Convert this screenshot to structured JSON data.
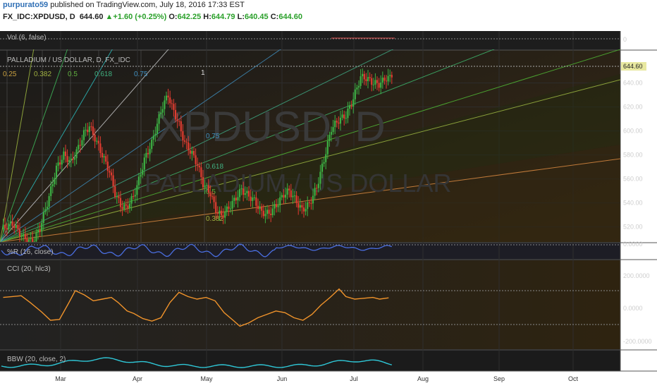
{
  "header": {
    "author": "purpurato59",
    "published": "published on TradingView.com, July 18, 2016 17:33 EST",
    "symbol": "FX_IDC:XPDUSD, D",
    "last": "644.60",
    "change_arrow": "▲",
    "change": "+1.60 (+0.25%)",
    "o_label": "O:",
    "open": "642.25",
    "h_label": "H:",
    "high": "644.79",
    "l_label": "L:",
    "low": "640.45",
    "c_label": "C:",
    "close": "644.60"
  },
  "colors": {
    "background": "#ffffff",
    "panel": "#1a1a1a",
    "up_candle": "#3cb043",
    "down_candle": "#e03c31",
    "pctr_line": "#4a6ee0",
    "cci_line": "#f0932b",
    "bbw_line": "#2fc8d8",
    "grid": "#2e2e2e",
    "price_label": "#e8e8a0"
  },
  "panes": {
    "vol_label": "Vol (6, false)",
    "vol_tick": "0",
    "price_title": "PALLADIUM / US DOLLAR, D, FX_IDC",
    "watermark_symbol": "XPDUSD, D",
    "watermark_name": "PALLADIUM / US DOLLAR",
    "current_price": "644.60",
    "pctr_label": "%R (16, close)",
    "pctr_tick": "0.0000",
    "cci_label": "CCI (20, hlc3)",
    "cci_ticks": [
      "200.0000",
      "0.0000",
      "-200.0000"
    ],
    "bbw_label": "BBW (20, close, 2)"
  },
  "fib": {
    "top_labels": [
      "0.25",
      "0.382",
      "0.5",
      "0.618",
      "0.75",
      "1"
    ],
    "mid_labels": [
      "0.75",
      "0.618",
      "0.5",
      "0.382"
    ]
  },
  "chart_data": {
    "type": "candlestick",
    "title": "PALLADIUM / US DOLLAR, D, FX_IDC",
    "x_axis_labels": [
      "Mar",
      "Apr",
      "May",
      "Jun",
      "Jul",
      "Aug",
      "Sep",
      "Oct"
    ],
    "y_axis_ticks": [
      520,
      540,
      560,
      580,
      600,
      620,
      640
    ],
    "ylim": [
      508,
      668
    ],
    "last_close": 644.6,
    "series": [
      {
        "name": "PALLADIUM / US DOLLAR",
        "close_path": [
          [
            0,
            518
          ],
          [
            6,
            523
          ],
          [
            12,
            511
          ],
          [
            17,
            507
          ],
          [
            21,
            519
          ],
          [
            26,
            545
          ],
          [
            30,
            569
          ],
          [
            34,
            580
          ],
          [
            38,
            574
          ],
          [
            42,
            586
          ],
          [
            45,
            598
          ],
          [
            48,
            604
          ],
          [
            51,
            594
          ],
          [
            55,
            580
          ],
          [
            59,
            566
          ],
          [
            62,
            548
          ],
          [
            65,
            538
          ],
          [
            68,
            536
          ],
          [
            72,
            545
          ],
          [
            75,
            559
          ],
          [
            78,
            576
          ],
          [
            82,
            590
          ],
          [
            85,
            606
          ],
          [
            88,
            621
          ],
          [
            91,
            630
          ],
          [
            93,
            620
          ],
          [
            97,
            605
          ],
          [
            100,
            590
          ],
          [
            104,
            581
          ],
          [
            107,
            572
          ],
          [
            110,
            556
          ],
          [
            114,
            548
          ],
          [
            117,
            534
          ],
          [
            120,
            529
          ],
          [
            123,
            534
          ],
          [
            127,
            542
          ],
          [
            131,
            551
          ],
          [
            134,
            547
          ],
          [
            138,
            542
          ],
          [
            142,
            532
          ],
          [
            146,
            531
          ],
          [
            150,
            538
          ],
          [
            154,
            547
          ],
          [
            157,
            550
          ],
          [
            161,
            541
          ],
          [
            164,
            534
          ],
          [
            168,
            539
          ],
          [
            172,
            553
          ],
          [
            176,
            576
          ],
          [
            180,
            602
          ],
          [
            184,
            609
          ],
          [
            188,
            613
          ],
          [
            191,
            623
          ],
          [
            194,
            636
          ],
          [
            196,
            645
          ],
          [
            199,
            644
          ],
          [
            201,
            642
          ],
          [
            203,
            640
          ],
          [
            206,
            639
          ],
          [
            210,
            644
          ],
          [
            213,
            644.6
          ]
        ]
      }
    ],
    "panes_bottom": {
      "williams_r_level_ticks": [
        0
      ],
      "cci_level_ticks": [
        200,
        0,
        -200
      ],
      "cci_approx_path": [
        [
          0,
          120
        ],
        [
          4,
          130
        ],
        [
          8,
          140
        ],
        [
          12,
          60
        ],
        [
          17,
          -50
        ],
        [
          21,
          -150
        ],
        [
          25,
          -140
        ],
        [
          29,
          50
        ],
        [
          32,
          200
        ],
        [
          36,
          150
        ],
        [
          40,
          80
        ],
        [
          44,
          100
        ],
        [
          48,
          120
        ],
        [
          51,
          60
        ],
        [
          55,
          -40
        ],
        [
          58,
          -70
        ],
        [
          62,
          -130
        ],
        [
          66,
          -160
        ],
        [
          70,
          -120
        ],
        [
          74,
          60
        ],
        [
          78,
          180
        ],
        [
          82,
          130
        ],
        [
          86,
          100
        ],
        [
          90,
          120
        ],
        [
          94,
          80
        ],
        [
          98,
          -60
        ],
        [
          102,
          -150
        ],
        [
          105,
          -220
        ],
        [
          109,
          -180
        ],
        [
          113,
          -120
        ],
        [
          117,
          -80
        ],
        [
          121,
          -40
        ],
        [
          125,
          -60
        ],
        [
          129,
          -120
        ],
        [
          133,
          -150
        ],
        [
          137,
          -80
        ],
        [
          141,
          30
        ],
        [
          145,
          120
        ],
        [
          149,
          220
        ],
        [
          152,
          130
        ],
        [
          156,
          100
        ],
        [
          160,
          110
        ],
        [
          164,
          120
        ],
        [
          167,
          100
        ],
        [
          171,
          115
        ]
      ]
    }
  }
}
